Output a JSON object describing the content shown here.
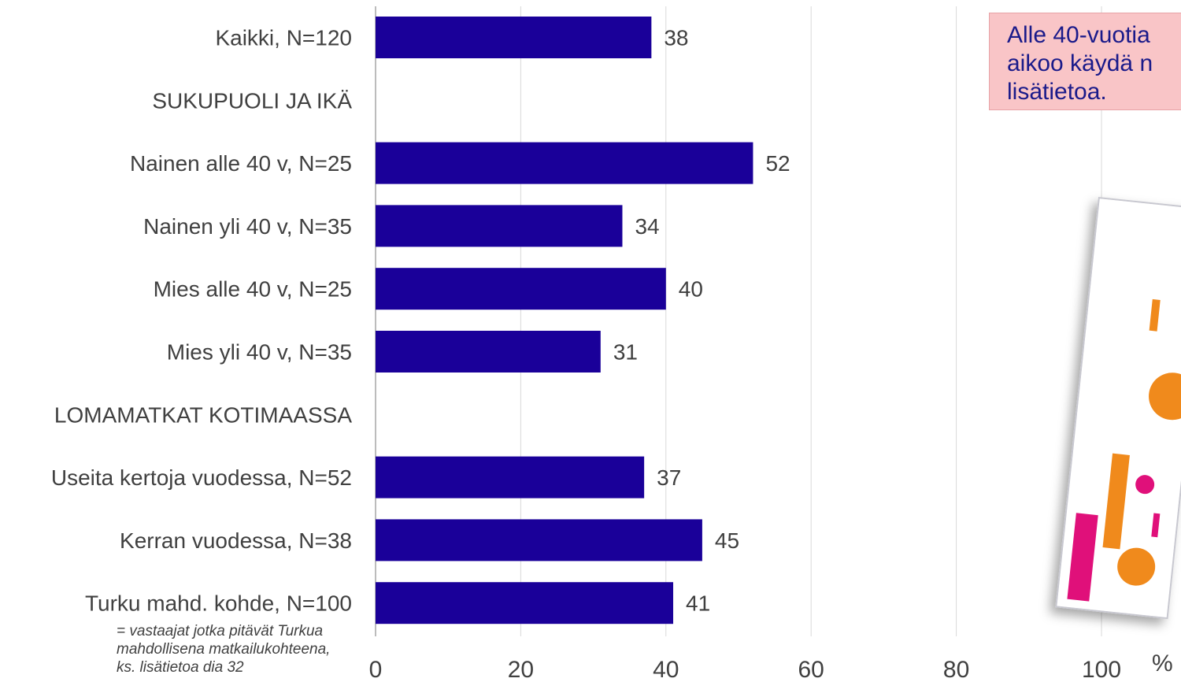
{
  "chart_data": {
    "type": "bar",
    "orientation": "horizontal",
    "categories": [
      "Kaikki, N=120",
      "SUKUPUOLI JA IKÄ",
      "Nainen alle 40 v, N=25",
      "Nainen yli 40 v, N=35",
      "Mies alle 40 v, N=25",
      "Mies yli 40 v, N=35",
      "LOMAMATKAT KOTIMAASSA",
      "Useita kertoja vuodessa, N=52",
      "Kerran vuodessa, N=38",
      "Turku mahd. kohde, N=100"
    ],
    "values": [
      38,
      null,
      52,
      34,
      40,
      31,
      null,
      37,
      45,
      41
    ],
    "xlim": [
      0,
      100
    ],
    "xticks": [
      0,
      20,
      40,
      60,
      80,
      100
    ],
    "xunit": "%",
    "grid": true,
    "bar_color": "#1a0099"
  },
  "footnote": [
    "= vastaajat jotka pitävät Turkua",
    "mahdollisena matkailukohteena,",
    "ks. lisätietoa dia 32"
  ],
  "callout": [
    "Alle 40-vuotia",
    "aikoo käydä n",
    "lisätietoa."
  ],
  "colors": {
    "bar": "#1a0099",
    "callout_bg": "#f9c5c7",
    "callout_text": "#1a1a8a",
    "grid": "#d9d9d9"
  }
}
